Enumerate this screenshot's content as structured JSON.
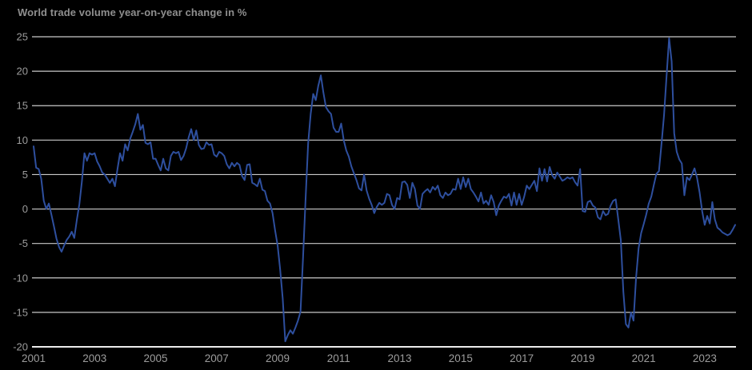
{
  "page": {
    "background": "#000000"
  },
  "chart_data": {
    "type": "line",
    "title": "World trade volume year-on-year change in %",
    "unit": "%",
    "frequency": "monthly",
    "x_start": {
      "year": 2001,
      "month": 1
    },
    "x_end": {
      "year": 2024,
      "month": 1
    },
    "x_tick_labels": [
      "2001",
      "2003",
      "2005",
      "2007",
      "2009",
      "2011",
      "2013",
      "2015",
      "2017",
      "2019",
      "2021",
      "2023"
    ],
    "y_ticks": [
      25,
      20,
      15,
      10,
      5,
      0,
      -5,
      -10,
      -15,
      -20
    ],
    "ylim": [
      -20,
      25
    ],
    "grid": "horizontal",
    "legend": "none",
    "colors": {
      "background": "#000000",
      "line": "#2e4f9e",
      "gridline": "#c9c9c9",
      "axis_line": "#ececec",
      "tick_label": "#9c9c9c",
      "title": "#8f8f8f"
    },
    "series": [
      {
        "name": "World trade volume year-on-year change in %",
        "color": "#2e4f9e",
        "values": [
          9.1,
          6.0,
          5.8,
          4.4,
          1.2,
          0.0,
          0.8,
          -0.8,
          -2.5,
          -4.3,
          -5.5,
          -6.2,
          -5.3,
          -4.5,
          -4.0,
          -3.3,
          -4.2,
          -1.6,
          0.7,
          4.0,
          8.1,
          7.0,
          8.1,
          7.9,
          8.1,
          6.9,
          6.2,
          5.3,
          5.0,
          4.4,
          3.8,
          4.4,
          3.3,
          5.8,
          8.1,
          7.0,
          9.4,
          8.5,
          10.2,
          11.2,
          12.3,
          13.8,
          11.5,
          12.2,
          9.6,
          9.4,
          9.7,
          7.3,
          7.3,
          6.4,
          5.6,
          7.3,
          5.9,
          5.6,
          7.7,
          8.3,
          8.1,
          8.3,
          7.1,
          7.7,
          8.8,
          10.4,
          11.6,
          10.0,
          11.4,
          9.3,
          8.7,
          8.8,
          9.7,
          9.3,
          9.4,
          7.9,
          7.6,
          8.3,
          8.1,
          7.7,
          6.5,
          5.9,
          6.7,
          6.2,
          6.7,
          6.4,
          4.8,
          4.2,
          6.4,
          6.5,
          3.8,
          3.6,
          3.3,
          4.4,
          2.8,
          2.6,
          1.2,
          0.8,
          -0.6,
          -3.1,
          -5.3,
          -8.8,
          -13.0,
          -19.2,
          -18.3,
          -17.6,
          -18.1,
          -17.2,
          -16.2,
          -14.9,
          -7.0,
          1.5,
          9.5,
          13.8,
          16.7,
          15.8,
          17.9,
          19.4,
          16.9,
          14.8,
          14.2,
          13.8,
          11.8,
          11.2,
          11.2,
          12.4,
          10.0,
          8.5,
          7.6,
          6.2,
          5.2,
          4.2,
          3.0,
          2.7,
          5.0,
          2.7,
          1.5,
          0.6,
          -0.6,
          0.3,
          0.9,
          0.6,
          0.9,
          2.2,
          2.0,
          0.6,
          0.0,
          1.6,
          1.4,
          3.9,
          4.0,
          3.5,
          1.6,
          3.8,
          2.9,
          0.5,
          0.0,
          2.2,
          2.6,
          2.9,
          2.4,
          3.2,
          2.8,
          3.4,
          2.0,
          1.6,
          2.4,
          2.0,
          2.2,
          2.9,
          2.8,
          4.4,
          2.9,
          4.6,
          3.2,
          4.4,
          2.9,
          2.4,
          1.8,
          1.1,
          2.4,
          0.8,
          1.2,
          0.6,
          2.0,
          1.0,
          -0.9,
          0.5,
          1.2,
          1.8,
          1.6,
          2.2,
          0.5,
          2.4,
          0.6,
          2.2,
          0.6,
          1.8,
          3.4,
          2.9,
          3.5,
          4.1,
          2.6,
          5.9,
          4.1,
          5.8,
          4.0,
          6.1,
          4.9,
          4.4,
          5.3,
          4.7,
          4.1,
          4.3,
          4.6,
          4.4,
          4.6,
          3.9,
          3.4,
          5.8,
          -0.3,
          -0.4,
          1.0,
          1.2,
          0.5,
          0.2,
          -1.2,
          -1.5,
          -0.3,
          -0.9,
          -0.7,
          0.5,
          1.2,
          1.4,
          -1.5,
          -4.5,
          -12.0,
          -16.7,
          -17.2,
          -15.0,
          -16.2,
          -10.0,
          -5.7,
          -3.5,
          -2.2,
          -0.8,
          0.8,
          1.8,
          3.5,
          5.1,
          5.5,
          9.4,
          13.6,
          19.3,
          24.8,
          21.4,
          11.0,
          8.3,
          7.2,
          6.6,
          2.0,
          4.6,
          4.2,
          5.0,
          5.9,
          4.5,
          2.4,
          -0.3,
          -2.3,
          -1.0,
          -2.1,
          1.0,
          -1.5,
          -2.7,
          -3.0,
          -3.4,
          -3.6,
          -3.8,
          -3.6,
          -3.0,
          -2.3
        ]
      }
    ]
  }
}
